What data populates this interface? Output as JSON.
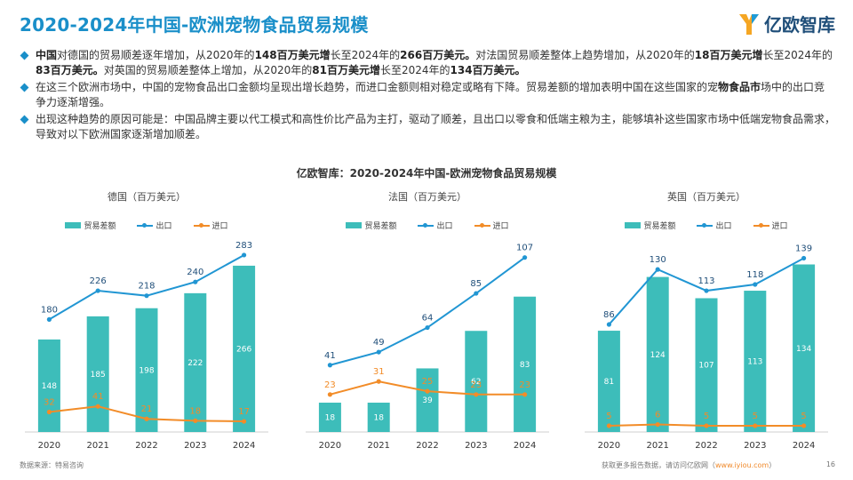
{
  "header": {
    "title": "2020-2024年中国-欧洲宠物食品贸易规模",
    "logo_text": "亿欧智库"
  },
  "bullets": [
    [
      {
        "t": "中国",
        "b": true
      },
      {
        "t": "对德国的贸易顺差逐年增加，从2020年的",
        "b": false
      },
      {
        "t": "148百万美元增",
        "b": true
      },
      {
        "t": "长至2024年的",
        "b": false
      },
      {
        "t": "266百万美元。",
        "b": true
      },
      {
        "t": "对法国贸易顺差整体上趋势增加，从2020年的",
        "b": false
      },
      {
        "t": "18百万美元增",
        "b": true
      },
      {
        "t": "长至2024年的",
        "b": false
      },
      {
        "t": "83百万美元。",
        "b": true
      },
      {
        "t": "对英国的贸易顺差整体上增加，从2020年的",
        "b": false
      },
      {
        "t": "81百万美元增",
        "b": true
      },
      {
        "t": "长至2024年的",
        "b": false
      },
      {
        "t": "134百万美元。",
        "b": true
      }
    ],
    [
      {
        "t": "在这三个欧洲市场中，中国的宠物食品出口金额均呈现出增长趋势，而进口金额则相对稳定或略有下降。贸易差额的增加表明中国在这些国家的宠",
        "b": false
      },
      {
        "t": "物食品市",
        "b": true
      },
      {
        "t": "场中的出口竞争力逐渐增强。",
        "b": false
      }
    ],
    [
      {
        "t": "出现这种趋势的原因可能是：中国品牌主要以代工模式和高性价比产品为主打，驱动了顺差，且出口以零食和低端主粮为主，能够填补这些国家市场中低端宠物食品需求，导致对以下欧洲国家逐渐增加顺差。",
        "b": false
      }
    ]
  ],
  "chart_title": "亿欧智库：2020-2024年中国-欧洲宠物食品贸易规模",
  "legend": {
    "balance": "贸易差额",
    "export": "出口",
    "import": "进口"
  },
  "colors": {
    "bar": "#3dbdba",
    "export": "#2196d3",
    "import": "#f28c28",
    "title": "#1a8fc9"
  },
  "chart_data": [
    {
      "type": "bar",
      "title": "德国（百万美元）",
      "categories": [
        "2020",
        "2021",
        "2022",
        "2023",
        "2024"
      ],
      "series": [
        {
          "name": "贸易差额",
          "type": "bar",
          "values": [
            148,
            185,
            198,
            222,
            266
          ]
        },
        {
          "name": "出口",
          "type": "line",
          "values": [
            180,
            226,
            218,
            240,
            283
          ]
        },
        {
          "name": "进口",
          "type": "line",
          "values": [
            32,
            41,
            21,
            18,
            17
          ]
        }
      ]
    },
    {
      "type": "bar",
      "title": "法国（百万美元）",
      "categories": [
        "2020",
        "2021",
        "2022",
        "2023",
        "2024"
      ],
      "series": [
        {
          "name": "贸易差额",
          "type": "bar",
          "values": [
            18,
            18,
            39,
            62,
            83
          ]
        },
        {
          "name": "出口",
          "type": "line",
          "values": [
            41,
            49,
            64,
            85,
            107
          ]
        },
        {
          "name": "进口",
          "type": "line",
          "values": [
            23,
            31,
            25,
            23,
            23
          ]
        }
      ]
    },
    {
      "type": "bar",
      "title": "英国（百万美元）",
      "categories": [
        "2020",
        "2021",
        "2022",
        "2023",
        "2024"
      ],
      "series": [
        {
          "name": "贸易差额",
          "type": "bar",
          "values": [
            81,
            124,
            107,
            113,
            134
          ]
        },
        {
          "name": "出口",
          "type": "line",
          "values": [
            86,
            130,
            113,
            118,
            139
          ]
        },
        {
          "name": "进口",
          "type": "line",
          "values": [
            5,
            6,
            5,
            5,
            5
          ]
        }
      ]
    }
  ],
  "footer": {
    "source": "数据来源：特易咨询",
    "more": "获取更多报告数据，请访问亿欧网（",
    "link": "www.iyiou.com",
    "close": "）",
    "page": "16"
  }
}
